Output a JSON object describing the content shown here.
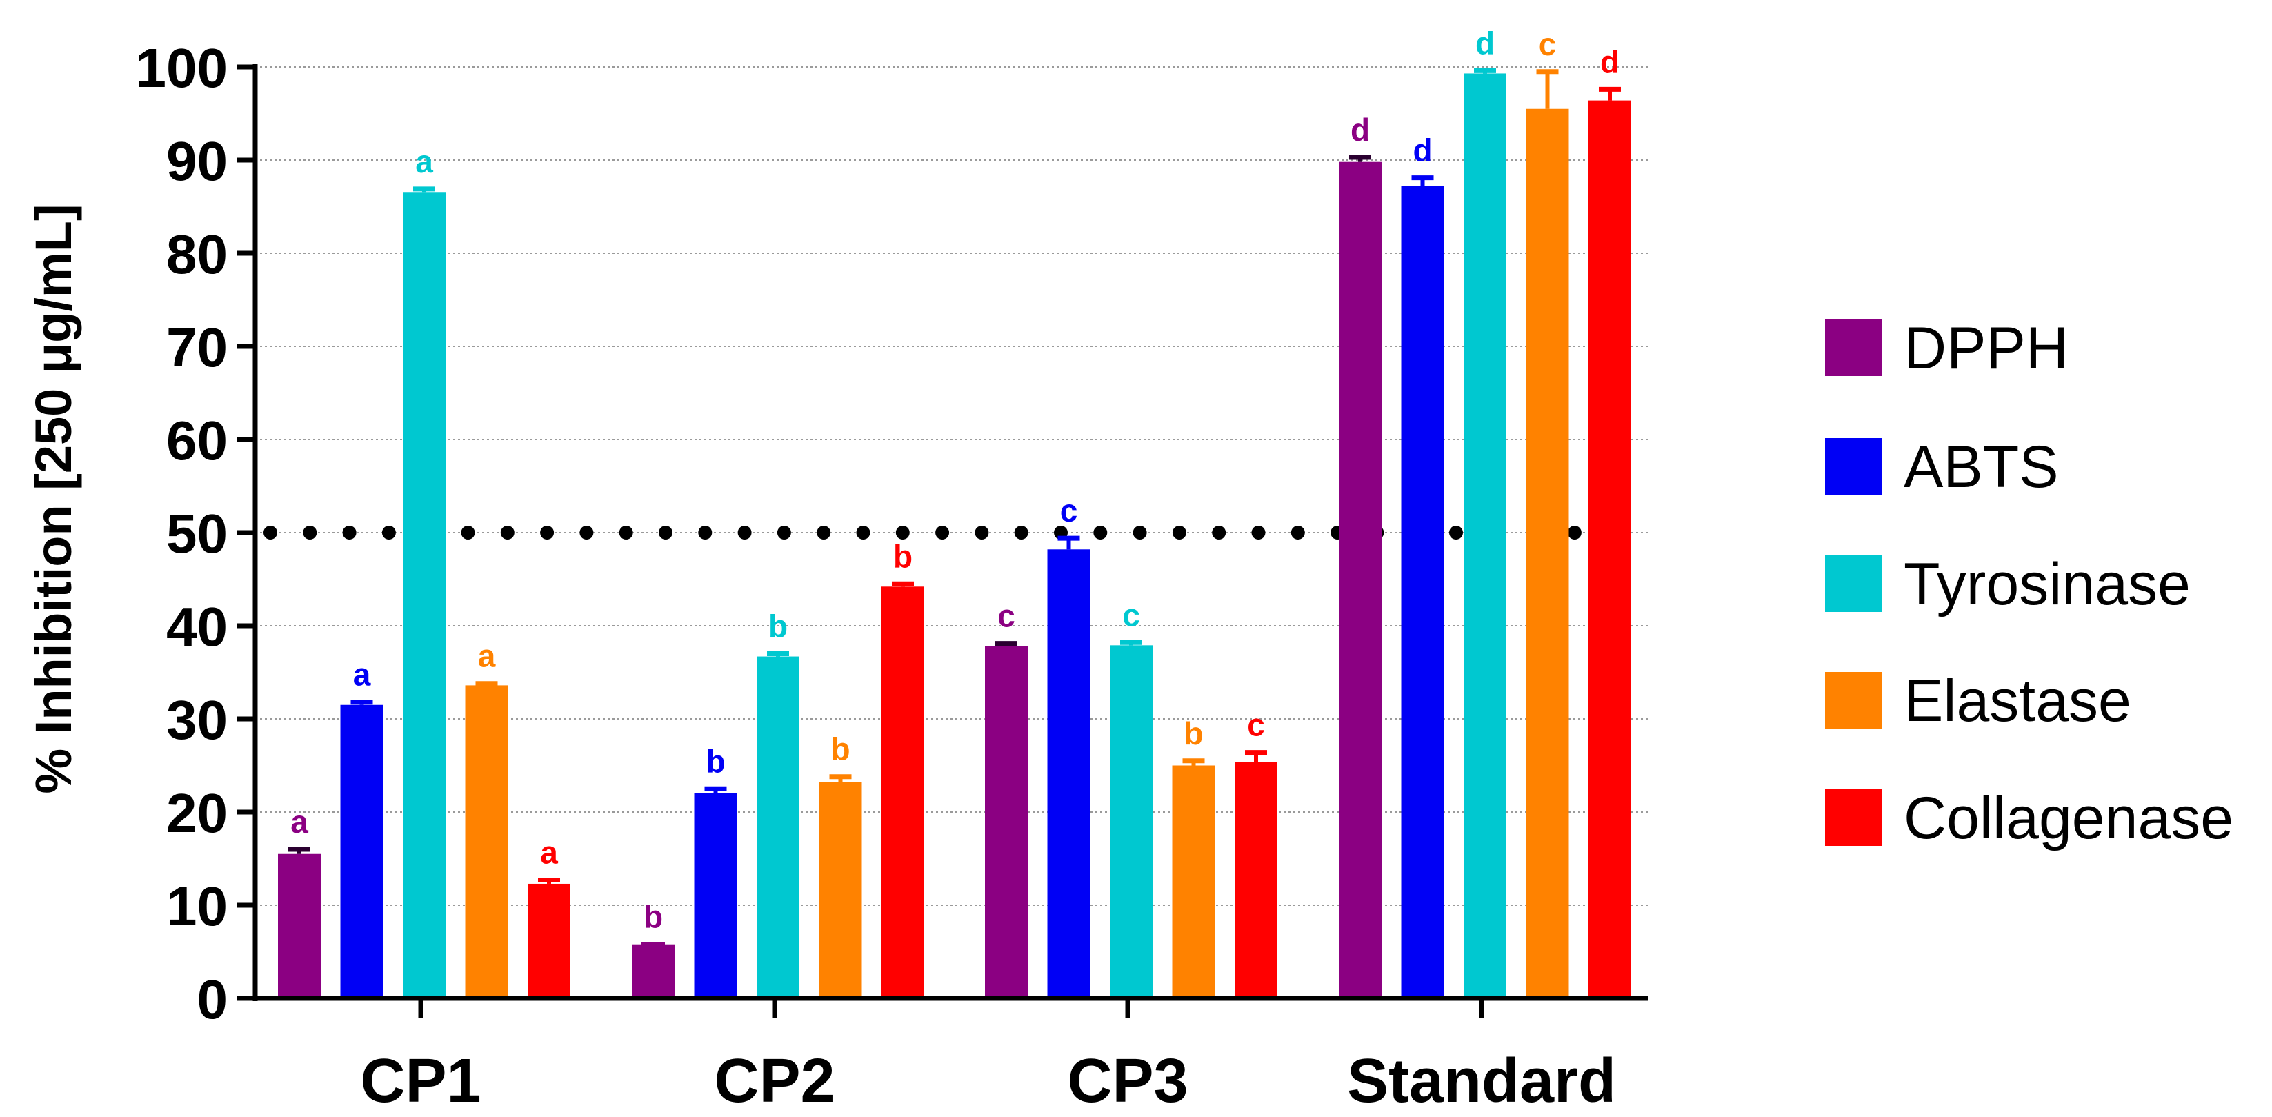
{
  "chart_data": {
    "type": "bar",
    "title": "",
    "xlabel": "",
    "ylabel": "% Inhibition [250 μg/mL]",
    "ylim": [
      0,
      100
    ],
    "yticks": [
      0,
      10,
      20,
      30,
      40,
      50,
      60,
      70,
      80,
      90,
      100
    ],
    "reference_line": 50,
    "legend_position": "right",
    "categories": [
      "CP1",
      "CP2",
      "CP3",
      "Standard"
    ],
    "series": [
      {
        "name": "DPPH",
        "color": "#8B0082",
        "values": [
          15.5,
          5.8,
          37.8,
          89.8
        ],
        "errors": [
          0.5,
          0,
          0.3,
          0.5
        ],
        "letters": [
          "a",
          "b",
          "c",
          "d"
        ]
      },
      {
        "name": "ABTS",
        "color": "#0000F5",
        "values": [
          31.5,
          22.0,
          48.2,
          87.2
        ],
        "errors": [
          0.3,
          0.5,
          1.2,
          0.9
        ],
        "letters": [
          "a",
          "b",
          "c",
          "d"
        ]
      },
      {
        "name": "Tyrosinase",
        "color": "#00C8D0",
        "values": [
          86.5,
          36.7,
          37.9,
          99.3
        ],
        "errors": [
          0.4,
          0.3,
          0.3,
          0.3
        ],
        "letters": [
          "a",
          "b",
          "c",
          "d"
        ]
      },
      {
        "name": "Elastase",
        "color": "#FF8200",
        "values": [
          33.6,
          23.2,
          25.0,
          95.5
        ],
        "errors": [
          0.2,
          0.6,
          0.5,
          4.0
        ],
        "letters": [
          "a",
          "b",
          "b",
          "c"
        ]
      },
      {
        "name": "Collagenase",
        "color": "#FF0000",
        "values": [
          12.3,
          44.2,
          25.4,
          96.4
        ],
        "errors": [
          0.4,
          0.3,
          1.0,
          1.2
        ],
        "letters": [
          "a",
          "b",
          "c",
          "d"
        ]
      }
    ]
  }
}
